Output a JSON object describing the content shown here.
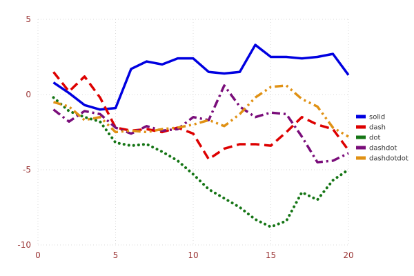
{
  "chart_data": {
    "type": "line",
    "title": "",
    "xlabel": "",
    "ylabel": "",
    "x": [
      1,
      2,
      3,
      4,
      5,
      6,
      7,
      8,
      9,
      10,
      11,
      12,
      13,
      14,
      15,
      16,
      17,
      18,
      19,
      20
    ],
    "series": [
      {
        "name": "solid",
        "style": "solid",
        "color": "#0000e0",
        "values": [
          0.8,
          0.1,
          -0.7,
          -1.0,
          -0.9,
          1.7,
          2.2,
          2.0,
          2.4,
          2.4,
          1.5,
          1.4,
          1.5,
          3.3,
          2.5,
          2.5,
          2.4,
          2.5,
          2.7,
          1.3
        ]
      },
      {
        "name": "dash",
        "style": "dash",
        "color": "#dd0000",
        "values": [
          1.5,
          0.2,
          1.2,
          -0.2,
          -2.2,
          -2.4,
          -2.3,
          -2.5,
          -2.2,
          -2.6,
          -4.3,
          -3.6,
          -3.3,
          -3.3,
          -3.4,
          -2.5,
          -1.5,
          -2.0,
          -2.3,
          -3.7
        ]
      },
      {
        "name": "dot",
        "style": "dot",
        "color": "#157515",
        "values": [
          -0.2,
          -1.1,
          -1.5,
          -1.8,
          -3.2,
          -3.4,
          -3.3,
          -3.8,
          -4.4,
          -5.3,
          -6.3,
          -6.9,
          -7.5,
          -8.3,
          -8.8,
          -8.4,
          -6.5,
          -7.0,
          -5.7,
          -5.0
        ]
      },
      {
        "name": "dashdot",
        "style": "dashdot",
        "color": "#7a0d7a",
        "values": [
          -1.0,
          -1.8,
          -1.1,
          -1.3,
          -2.2,
          -2.6,
          -2.1,
          -2.4,
          -2.3,
          -1.5,
          -1.7,
          0.6,
          -0.8,
          -1.5,
          -1.2,
          -1.3,
          -2.8,
          -4.5,
          -4.4,
          -3.9
        ]
      },
      {
        "name": "dashdotdot",
        "style": "dashdotdot",
        "color": "#e09114",
        "values": [
          -0.5,
          -0.8,
          -1.7,
          -1.5,
          -2.5,
          -2.4,
          -2.5,
          -2.3,
          -2.2,
          -2.0,
          -1.7,
          -2.1,
          -1.3,
          -0.2,
          0.5,
          0.6,
          -0.3,
          -0.8,
          -2.2,
          -2.8
        ]
      }
    ],
    "xlim": [
      0,
      20
    ],
    "ylim": [
      -10,
      5
    ],
    "xticks": [
      0,
      5,
      10,
      15,
      20
    ],
    "yticks": [
      -10,
      -5,
      0,
      5
    ],
    "grid": true,
    "grid_color": "#d8d8d8",
    "tick_color": "#993333",
    "legend": {
      "position": "center-right",
      "text_color": "#333333",
      "entries": [
        "solid",
        "dash",
        "dot",
        "dashdot",
        "dashdotdot"
      ]
    }
  }
}
